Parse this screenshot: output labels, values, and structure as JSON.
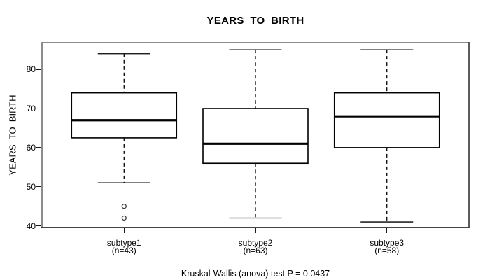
{
  "chart_data": {
    "type": "boxplot",
    "title": "YEARS_TO_BIRTH",
    "ylabel": "YEARS_TO_BIRTH",
    "footnote": "Kruskal-Wallis (anova) test P = 0.0437",
    "yticks": [
      40,
      50,
      60,
      70,
      80
    ],
    "ylim": [
      39.4,
      87.0
    ],
    "grid": false,
    "legend": "none",
    "groups": [
      {
        "label": "subtype1",
        "sublabel": "(n=43)",
        "n": 43,
        "whisker_low": 51,
        "q1": 62.5,
        "median": 67,
        "q3": 74,
        "whisker_high": 84,
        "outliers": [
          45,
          42
        ]
      },
      {
        "label": "subtype2",
        "sublabel": "(n=63)",
        "n": 63,
        "whisker_low": 42,
        "q1": 56,
        "median": 61,
        "q3": 70,
        "whisker_high": 85,
        "outliers": []
      },
      {
        "label": "subtype3",
        "sublabel": "(n=58)",
        "n": 58,
        "whisker_low": 41,
        "q1": 60,
        "median": 68,
        "q3": 74,
        "whisker_high": 85,
        "outliers": []
      }
    ],
    "colors": {
      "line": "#000000",
      "box_fill": "#ffffff",
      "frame_top_left": "#8c8c8c",
      "frame_bottom_right": "#2a2a2a",
      "background": "#ffffff"
    }
  }
}
